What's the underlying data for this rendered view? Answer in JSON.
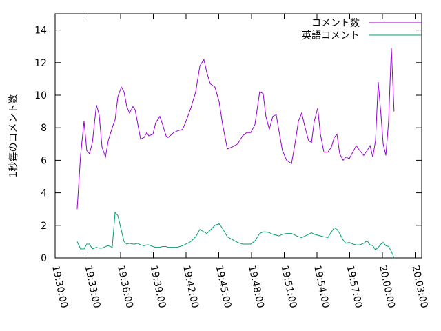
{
  "chart_data": {
    "type": "line",
    "ylabel": "1秒毎のコメント数",
    "x": [
      "19:32:01",
      "19:32:20",
      "19:32:39",
      "19:32:54",
      "19:33:09",
      "19:33:25",
      "19:33:47",
      "19:34:02",
      "19:34:18",
      "19:34:37",
      "19:34:52",
      "19:35:14",
      "19:35:30",
      "19:35:45",
      "19:36:04",
      "19:36:19",
      "19:36:34",
      "19:36:49",
      "19:37:08",
      "19:37:20",
      "19:37:35",
      "19:37:50",
      "19:38:09",
      "19:38:24",
      "19:38:35",
      "19:38:58",
      "19:39:13",
      "19:39:36",
      "19:39:51",
      "19:40:10",
      "19:40:21",
      "19:40:52",
      "19:41:11",
      "19:41:41",
      "19:42:00",
      "19:42:26",
      "19:42:53",
      "19:43:16",
      "19:43:38",
      "19:43:54",
      "19:44:13",
      "19:44:39",
      "19:45:02",
      "19:45:21",
      "19:45:47",
      "19:46:10",
      "19:46:44",
      "19:47:11",
      "19:47:33",
      "19:47:56",
      "19:48:19",
      "19:48:45",
      "19:49:04",
      "19:49:19",
      "19:49:38",
      "19:49:57",
      "19:50:16",
      "19:50:31",
      "19:50:50",
      "19:51:13",
      "19:51:40",
      "19:51:59",
      "19:52:18",
      "19:52:36",
      "19:52:55",
      "19:53:14",
      "19:53:30",
      "19:53:45",
      "19:54:04",
      "19:54:19",
      "19:54:38",
      "19:55:00",
      "19:55:19",
      "19:55:35",
      "19:55:50",
      "19:56:05",
      "19:56:24",
      "19:56:39",
      "19:56:58",
      "19:57:17",
      "19:57:36",
      "19:57:55",
      "19:58:17",
      "19:58:36",
      "19:58:52",
      "19:59:07",
      "19:59:22",
      "19:59:37",
      "19:59:52",
      "20:00:04",
      "20:00:19",
      "20:00:34",
      "20:00:49",
      "20:01:04"
    ],
    "series": [
      {
        "name": "コメント数",
        "color": "#9400d3",
        "values": [
          3.0,
          6.3,
          8.4,
          6.6,
          6.4,
          7.1,
          9.4,
          8.8,
          6.8,
          6.2,
          7.2,
          8.0,
          8.5,
          9.9,
          10.5,
          10.2,
          9.3,
          8.9,
          9.3,
          9.1,
          8.2,
          7.3,
          7.4,
          7.7,
          7.5,
          7.6,
          8.3,
          8.7,
          8.2,
          7.5,
          7.4,
          7.7,
          7.8,
          7.9,
          8.4,
          9.2,
          10.2,
          11.8,
          12.2,
          11.4,
          10.7,
          10.5,
          9.6,
          8.2,
          6.7,
          6.8,
          7.0,
          7.5,
          7.7,
          7.7,
          8.2,
          10.2,
          10.1,
          8.7,
          7.9,
          8.7,
          8.8,
          7.8,
          6.6,
          6.0,
          5.8,
          7.0,
          8.4,
          8.9,
          8.0,
          7.2,
          7.1,
          8.4,
          9.2,
          7.6,
          6.5,
          6.5,
          6.8,
          7.4,
          7.6,
          6.4,
          6.0,
          6.2,
          6.1,
          6.5,
          6.9,
          6.6,
          6.3,
          6.6,
          6.9,
          6.2,
          7.2,
          10.8,
          8.8,
          7.0,
          6.3,
          8.4,
          12.9,
          9.0
        ]
      },
      {
        "name": "英語コメント",
        "color": "#009e73",
        "values": [
          1.0,
          0.55,
          0.55,
          0.85,
          0.85,
          0.55,
          0.65,
          0.6,
          0.6,
          0.7,
          0.75,
          0.65,
          2.8,
          2.6,
          1.7,
          1.0,
          0.85,
          0.9,
          0.85,
          0.85,
          0.9,
          0.8,
          0.75,
          0.8,
          0.8,
          0.7,
          0.65,
          0.65,
          0.7,
          0.7,
          0.65,
          0.65,
          0.65,
          0.75,
          0.85,
          1.0,
          1.3,
          1.75,
          1.6,
          1.5,
          1.7,
          2.0,
          2.1,
          1.8,
          1.3,
          1.15,
          0.95,
          0.85,
          0.85,
          0.85,
          1.05,
          1.5,
          1.6,
          1.6,
          1.55,
          1.45,
          1.4,
          1.35,
          1.45,
          1.5,
          1.5,
          1.4,
          1.3,
          1.25,
          1.35,
          1.45,
          1.55,
          1.45,
          1.4,
          1.35,
          1.3,
          1.25,
          1.6,
          1.85,
          1.75,
          1.5,
          1.1,
          0.9,
          0.95,
          0.85,
          0.8,
          0.8,
          0.9,
          1.05,
          0.8,
          0.75,
          0.5,
          0.65,
          0.85,
          0.95,
          0.75,
          0.7,
          0.4,
          0.0
        ]
      }
    ],
    "xlim": [
      "19:30:00",
      "20:03:36"
    ],
    "xticks": [
      "19:30:00",
      "19:33:00",
      "19:36:00",
      "19:39:00",
      "19:42:00",
      "19:45:00",
      "19:48:00",
      "19:51:00",
      "19:54:00",
      "19:57:00",
      "20:00:00",
      "20:03:00"
    ],
    "ylim": [
      0,
      15
    ],
    "yticks": [
      0,
      2,
      4,
      6,
      8,
      10,
      12,
      14
    ],
    "grid": false,
    "legend": "upper right"
  }
}
